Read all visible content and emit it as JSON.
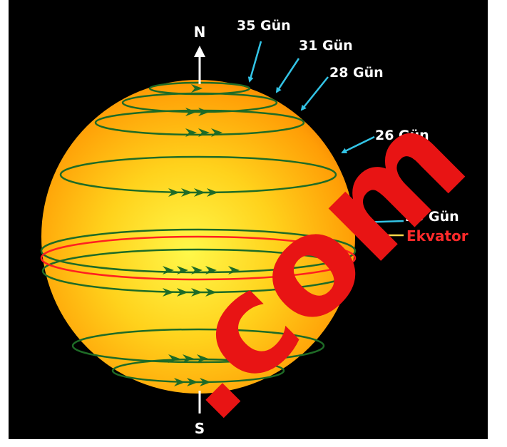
{
  "diagram": {
    "poles": {
      "north": "N",
      "south": "S"
    },
    "rotation_periods": [
      {
        "label": "35 Gün"
      },
      {
        "label": "31 Gün"
      },
      {
        "label": "28 Gün"
      },
      {
        "label": "26 Gün"
      },
      {
        "label": "25 Gün"
      }
    ],
    "equator_label": "Ekvator",
    "watermark": ".com"
  },
  "colors": {
    "background": "#000000",
    "sun_core": "#fff23a",
    "sun_edge": "#f08a00",
    "flow_line": "#1e6b26",
    "equator_line": "#ff2020",
    "equator_label": "#ff2a2a",
    "callout_arrow": "#33c4e6",
    "equator_arrow": "#ffd84a",
    "watermark": "#e81414"
  }
}
